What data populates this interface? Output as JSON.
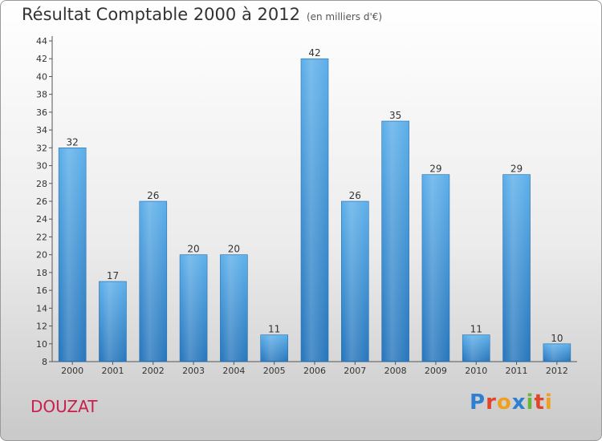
{
  "chart_data": {
    "type": "bar",
    "title": "Résultat Comptable 2000 à 2012",
    "subtitle": "(en milliers d'€)",
    "categories": [
      "2000",
      "2001",
      "2002",
      "2003",
      "2004",
      "2005",
      "2006",
      "2007",
      "2008",
      "2009",
      "2010",
      "2011",
      "2012"
    ],
    "values": [
      32,
      17,
      26,
      20,
      20,
      11,
      42,
      26,
      35,
      29,
      11,
      29,
      10
    ],
    "ylim": [
      8,
      44
    ],
    "yticks": [
      8,
      10,
      12,
      14,
      16,
      18,
      20,
      22,
      24,
      26,
      28,
      30,
      32,
      34,
      36,
      38,
      40,
      42,
      44
    ],
    "xlabel": "",
    "ylabel": "",
    "grid": false,
    "bar_color": "#3a8fd6",
    "legend": "none"
  },
  "footer": {
    "city": "DOUZAT",
    "logo_text": "Proxiti",
    "city_color": "#c8204e"
  },
  "logo_letters": [
    {
      "ch": "P",
      "color": "#2f7fd0"
    },
    {
      "ch": "r",
      "color": "#e0452b"
    },
    {
      "ch": "o",
      "color": "#f0a020"
    },
    {
      "ch": "x",
      "color": "#2f7fd0"
    },
    {
      "ch": "i",
      "color": "#6ab33d"
    },
    {
      "ch": "t",
      "color": "#e0452b"
    },
    {
      "ch": "i",
      "color": "#f0a020"
    }
  ]
}
